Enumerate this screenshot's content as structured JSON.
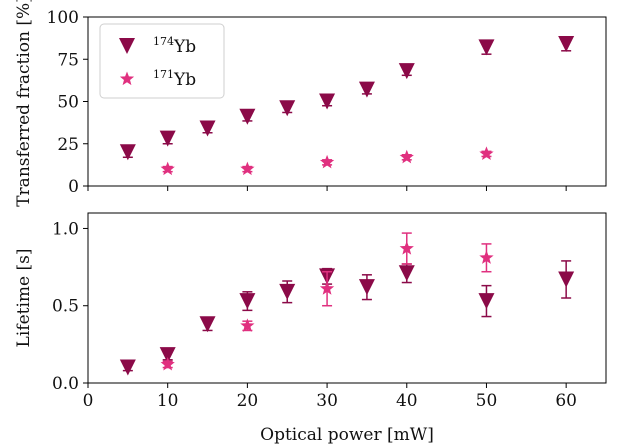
{
  "chart_data": [
    {
      "type": "scatter",
      "ylabel": "Transferred fraction [%]",
      "xlim": [
        0,
        65
      ],
      "ylim": [
        0,
        100
      ],
      "yticks": [
        "0",
        "25",
        "50",
        "75",
        "100"
      ],
      "legend": {
        "placement": "top-left"
      },
      "series": [
        {
          "name_mass": "174",
          "name_element": "Yb",
          "marker": "down-triangle",
          "color": "#8b0a48",
          "x": [
            5,
            10,
            15,
            20,
            25,
            30,
            35,
            40,
            50,
            60
          ],
          "y": [
            20,
            28,
            34,
            41,
            46,
            50,
            57,
            68,
            82,
            84
          ],
          "yerr": [
            3,
            3,
            2.5,
            2.5,
            2.5,
            2.5,
            2.5,
            2.5,
            4,
            4
          ]
        },
        {
          "name_mass": "171",
          "name_element": "Yb",
          "marker": "star",
          "color": "#e0307f",
          "x": [
            10,
            20,
            30,
            40,
            50
          ],
          "y": [
            10,
            10,
            14,
            17,
            19
          ],
          "yerr": [
            1.5,
            1.5,
            1.5,
            1.5,
            1.5
          ]
        }
      ]
    },
    {
      "type": "scatter",
      "xlabel": "Optical power [mW]",
      "ylabel": "Lifetime [s]",
      "xlim": [
        0,
        65
      ],
      "ylim": [
        0,
        1.1
      ],
      "xticks": [
        "0",
        "10",
        "20",
        "30",
        "40",
        "50",
        "60"
      ],
      "yticks": [
        "0.0",
        "0.5",
        "1.0"
      ],
      "series": [
        {
          "marker": "down-triangle",
          "color": "#8b0a48",
          "x": [
            5,
            10,
            15,
            20,
            25,
            30,
            35,
            40,
            50,
            60
          ],
          "y": [
            0.1,
            0.18,
            0.38,
            0.53,
            0.59,
            0.69,
            0.62,
            0.71,
            0.53,
            0.67
          ],
          "yerr": [
            0.02,
            0.03,
            0.04,
            0.06,
            0.07,
            0.05,
            0.08,
            0.06,
            0.1,
            0.12
          ]
        },
        {
          "marker": "star",
          "color": "#e0307f",
          "x": [
            10,
            20,
            30,
            40,
            50
          ],
          "y": [
            0.12,
            0.37,
            0.61,
            0.87,
            0.81
          ],
          "yerr": [
            0.02,
            0.03,
            0.11,
            0.1,
            0.09
          ]
        }
      ]
    }
  ]
}
